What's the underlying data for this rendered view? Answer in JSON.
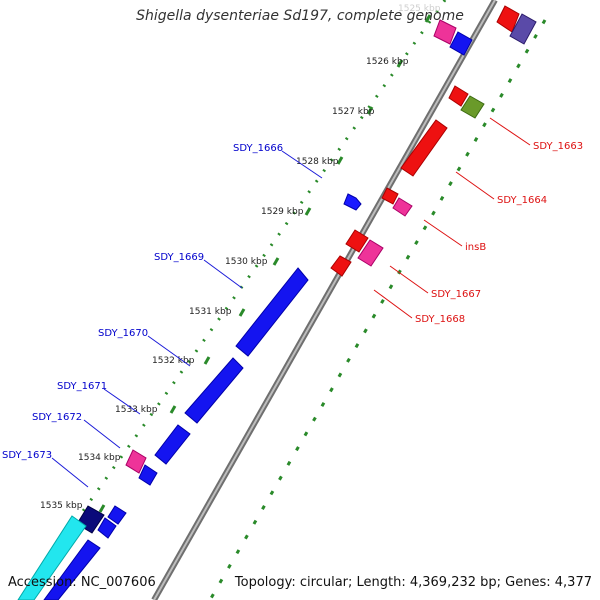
{
  "title": "Shigella dysenteriae Sd197, complete genome",
  "footer": {
    "accession": "Accession: NC_007606",
    "info": "Topology: circular; Length: 4,369,232 bp; Genes: 4,377"
  },
  "ticks": [
    {
      "label": "1525 kbp",
      "faded": true
    },
    {
      "label": "1526 kbp"
    },
    {
      "label": "1527 kbp"
    },
    {
      "label": "1528 kbp"
    },
    {
      "label": "1529 kbp"
    },
    {
      "label": "1530 kbp"
    },
    {
      "label": "1531 kbp"
    },
    {
      "label": "1532 kbp"
    },
    {
      "label": "1533 kbp"
    },
    {
      "label": "1534 kbp"
    },
    {
      "label": "1535 kbp"
    }
  ],
  "genes_left": [
    {
      "label": "SDY_1666"
    },
    {
      "label": "SDY_1669"
    },
    {
      "label": "SDY_1670"
    },
    {
      "label": "SDY_1671"
    },
    {
      "label": "SDY_1672"
    },
    {
      "label": "SDY_1673"
    }
  ],
  "genes_right": [
    {
      "label": "SDY_1663"
    },
    {
      "label": "SDY_1664"
    },
    {
      "label": "insB"
    },
    {
      "label": "SDY_1667"
    },
    {
      "label": "SDY_1668"
    }
  ],
  "colors": {
    "left_label": "#0000cc",
    "right_label": "#cc0000",
    "tick_dots": "#2a8a2a",
    "backbone": "#888888"
  }
}
